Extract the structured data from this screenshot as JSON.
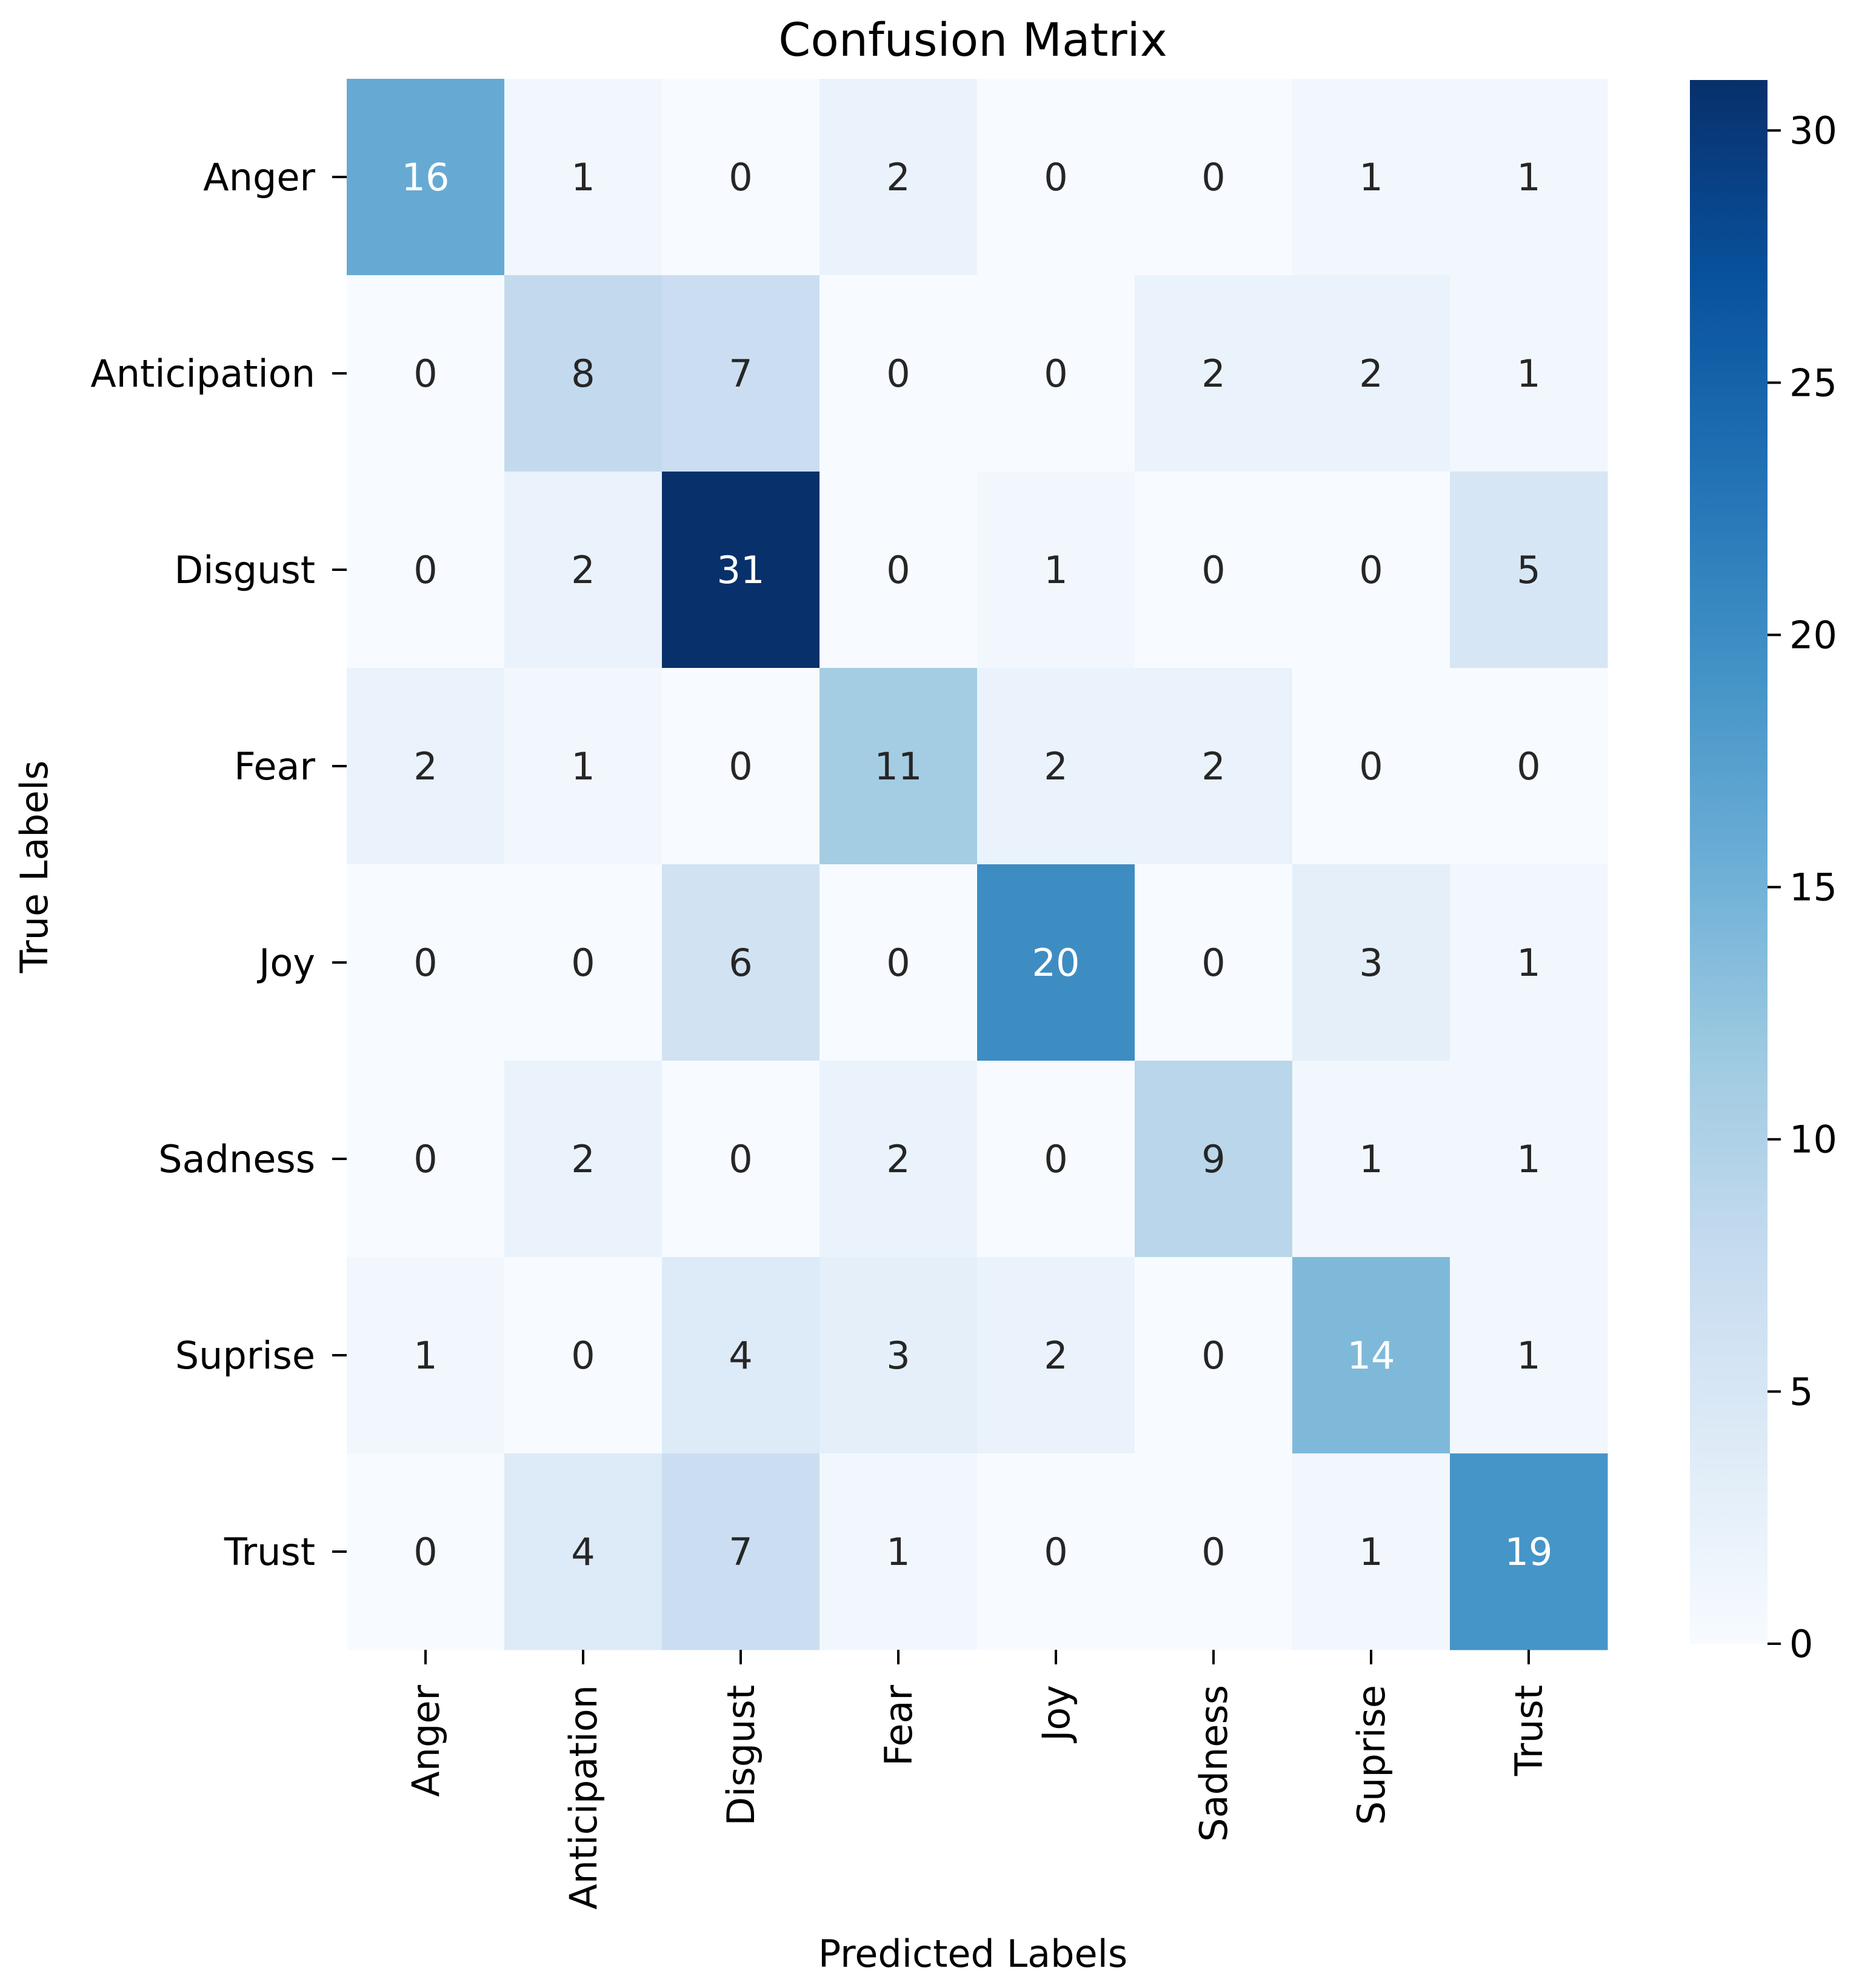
{
  "chart_data": {
    "type": "heatmap",
    "title": "Confusion Matrix",
    "xlabel": "Predicted Labels",
    "ylabel": "True Labels",
    "x_categories": [
      "Anger",
      "Anticipation",
      "Disgust",
      "Fear",
      "Joy",
      "Sadness",
      "Suprise",
      "Trust"
    ],
    "y_categories": [
      "Anger",
      "Anticipation",
      "Disgust",
      "Fear",
      "Joy",
      "Sadness",
      "Suprise",
      "Trust"
    ],
    "values": [
      [
        16,
        1,
        0,
        2,
        0,
        0,
        1,
        1
      ],
      [
        0,
        8,
        7,
        0,
        0,
        2,
        2,
        1
      ],
      [
        0,
        2,
        31,
        0,
        1,
        0,
        0,
        5
      ],
      [
        2,
        1,
        0,
        11,
        2,
        2,
        0,
        0
      ],
      [
        0,
        0,
        6,
        0,
        20,
        0,
        3,
        1
      ],
      [
        0,
        2,
        0,
        2,
        0,
        9,
        1,
        1
      ],
      [
        1,
        0,
        4,
        3,
        2,
        0,
        14,
        1
      ],
      [
        0,
        4,
        7,
        1,
        0,
        0,
        1,
        19
      ]
    ],
    "colormap": "Blues",
    "colorbar": {
      "vmin": 0,
      "vmax": 31,
      "ticks": [
        0,
        5,
        10,
        15,
        20,
        25,
        30
      ]
    },
    "annotated": true
  }
}
